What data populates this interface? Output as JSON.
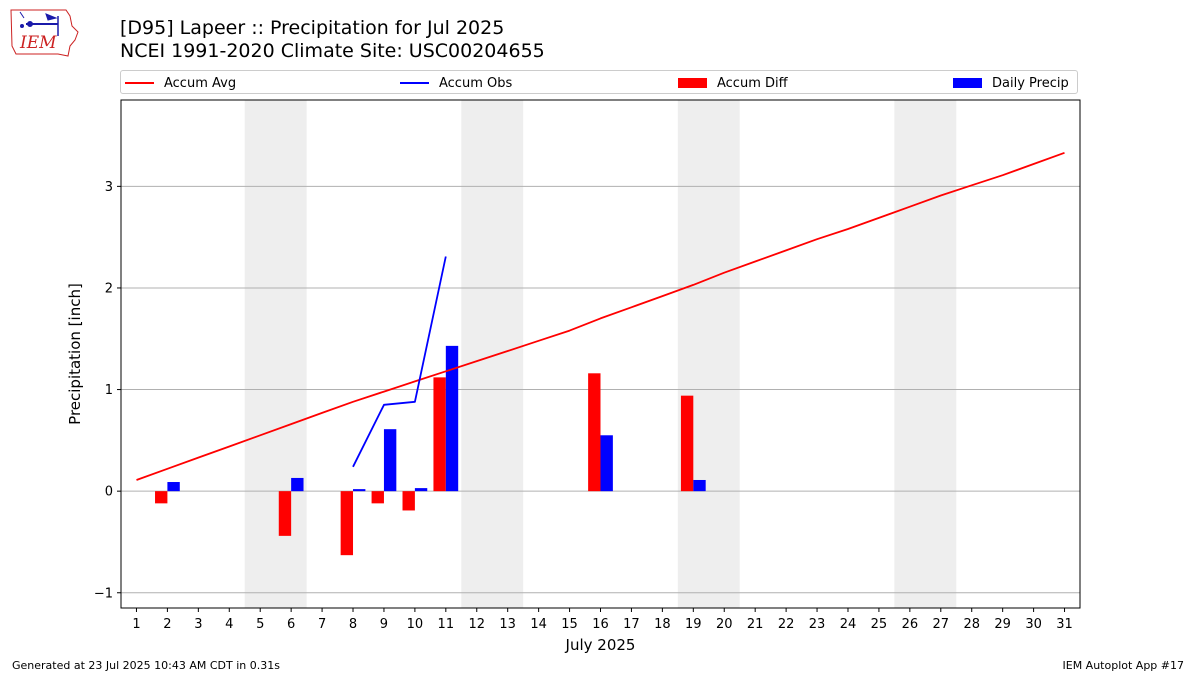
{
  "logo": {
    "text": "IEM",
    "colors": {
      "outline": "#cc2222",
      "icon": "#1a1aaa",
      "text": "#cc2222"
    }
  },
  "header": {
    "title_line1": "[D95] Lapeer :: Precipitation for Jul 2025",
    "title_line2": "NCEI 1991-2020 Climate Site: USC00204655"
  },
  "legend": {
    "items": [
      {
        "label": "Accum Avg",
        "kind": "line",
        "color": "#ff0000"
      },
      {
        "label": "Accum Obs",
        "kind": "line",
        "color": "#0000ff"
      },
      {
        "label": "Accum Diff",
        "kind": "bar",
        "color": "#ff0000"
      },
      {
        "label": "Daily Precip",
        "kind": "bar",
        "color": "#0000ff"
      }
    ]
  },
  "footer": {
    "left": "Generated at 23 Jul 2025 10:43 AM CDT in 0.31s",
    "right": "IEM Autoplot App #17"
  },
  "chart_data": {
    "type": "bar",
    "title": "[D95] Lapeer :: Precipitation for Jul 2025",
    "subtitle": "NCEI 1991-2020 Climate Site: USC00204655",
    "xlabel": "July 2025",
    "ylabel": "Precipitation [inch]",
    "xlim": [
      0.5,
      31.5
    ],
    "ylim": [
      -1.15,
      3.85
    ],
    "yticks": [
      -1,
      0,
      1,
      2,
      3
    ],
    "grid": "horizontal",
    "x": [
      1,
      2,
      3,
      4,
      5,
      6,
      7,
      8,
      9,
      10,
      11,
      12,
      13,
      14,
      15,
      16,
      17,
      18,
      19,
      20,
      21,
      22,
      23,
      24,
      25,
      26,
      27,
      28,
      29,
      30,
      31
    ],
    "weekend_days": [
      5,
      6,
      12,
      13,
      19,
      20,
      26,
      27
    ],
    "weekend_color": "#eeeeee",
    "series": [
      {
        "name": "Accum Avg",
        "kind": "line",
        "color": "#ff0000",
        "x": [
          1,
          2,
          3,
          4,
          5,
          6,
          7,
          8,
          9,
          10,
          11,
          12,
          13,
          14,
          15,
          16,
          17,
          18,
          19,
          20,
          21,
          22,
          23,
          24,
          25,
          26,
          27,
          28,
          29,
          30,
          31
        ],
        "values": [
          0.11,
          0.22,
          0.33,
          0.44,
          0.55,
          0.66,
          0.77,
          0.88,
          0.98,
          1.08,
          1.18,
          1.28,
          1.38,
          1.48,
          1.58,
          1.7,
          1.81,
          1.92,
          2.03,
          2.15,
          2.26,
          2.37,
          2.48,
          2.58,
          2.69,
          2.8,
          2.91,
          3.01,
          3.11,
          3.22,
          3.33
        ]
      },
      {
        "name": "Accum Obs",
        "kind": "line",
        "color": "#0000ff",
        "x": [
          8,
          9,
          10,
          11
        ],
        "values": [
          0.24,
          0.85,
          0.88,
          2.31
        ]
      },
      {
        "name": "Accum Diff",
        "kind": "bar",
        "color": "#ff0000",
        "x": [
          2,
          6,
          8,
          9,
          10,
          11,
          16,
          19
        ],
        "values": [
          -0.12,
          -0.44,
          -0.63,
          -0.12,
          -0.19,
          1.12,
          1.16,
          0.94
        ]
      },
      {
        "name": "Daily Precip",
        "kind": "bar",
        "color": "#0000ff",
        "x": [
          2,
          6,
          8,
          9,
          10,
          11,
          16,
          19
        ],
        "values": [
          0.09,
          0.13,
          0.02,
          0.61,
          0.03,
          1.43,
          0.55,
          0.11
        ]
      }
    ]
  }
}
